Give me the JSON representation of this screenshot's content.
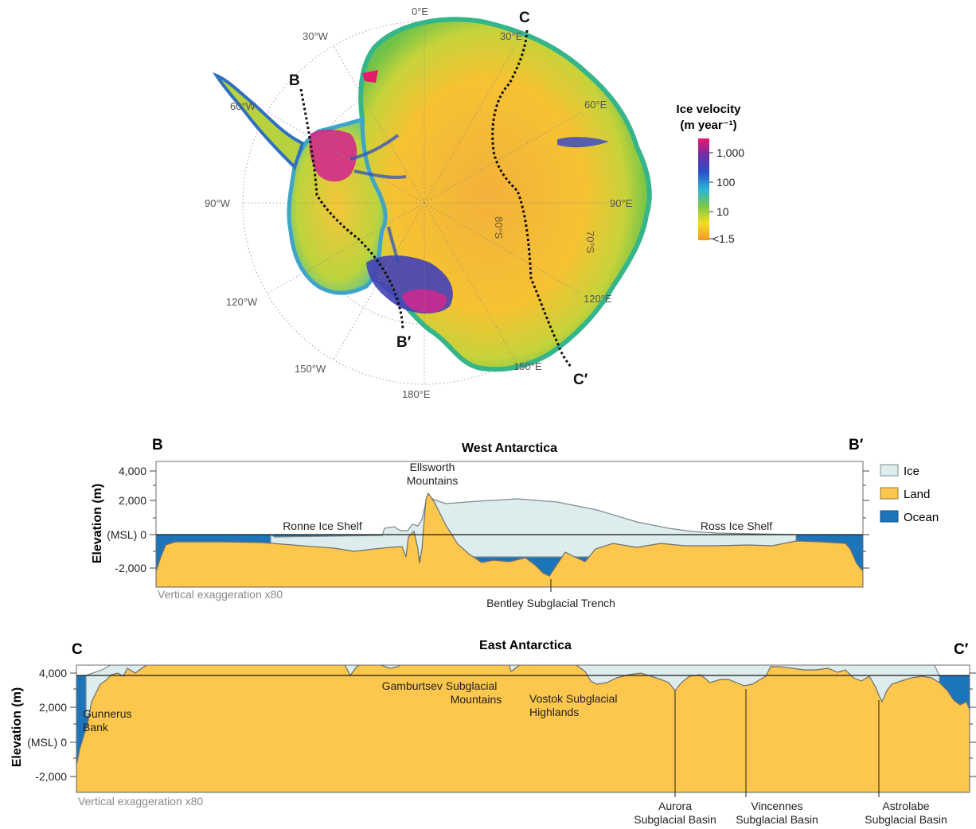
{
  "map": {
    "lon_labels": [
      "0°E",
      "30°E",
      "60°E",
      "90°E",
      "120°E",
      "150°E",
      "180°E",
      "150°W",
      "120°W",
      "90°W",
      "60°W",
      "30°W"
    ],
    "lat_labels": [
      "80°S",
      "70°S"
    ],
    "transect_b": {
      "start": "B",
      "end": "B′"
    },
    "transect_c": {
      "start": "C",
      "end": "C′"
    },
    "colorbar": {
      "title_line1": "Ice velocity",
      "title_line2": "(m year⁻¹)",
      "ticks": [
        "1,000",
        "100",
        "10",
        "<1.5"
      ],
      "colors": [
        "#e8186e",
        "#6a2fa8",
        "#2a4fc9",
        "#2bb5d8",
        "#7ec845",
        "#f2dd22",
        "#f39a1f"
      ]
    }
  },
  "legend": {
    "items": [
      {
        "label": "Ice",
        "color": "#ddecec"
      },
      {
        "label": "Land",
        "color": "#fdc64c"
      },
      {
        "label": "Ocean",
        "color": "#1d75b9"
      }
    ]
  },
  "west": {
    "title": "West Antarctica",
    "start_label": "B",
    "end_label": "B′",
    "ylabel": "Elevation (m)",
    "yticks": [
      "4,000",
      "2,000",
      "(MSL) 0",
      "-2,000"
    ],
    "exaggeration": "Vertical exaggeration x80",
    "annotations": {
      "ellsworth_1": "Ellsworth",
      "ellsworth_2": "Mountains",
      "ronne": "Ronne Ice Shelf",
      "ross": "Ross Ice Shelf",
      "bentley": "Bentley Subglacial Trench"
    }
  },
  "east": {
    "title": "East Antarctica",
    "start_label": "C",
    "end_label": "C′",
    "ylabel": "Elevation (m)",
    "yticks": [
      "4,000",
      "2,000",
      "(MSL) 0",
      "-2,000"
    ],
    "exaggeration": "Vertical exaggeration x80",
    "annotations": {
      "gunnerus_1": "Gunnerus",
      "gunnerus_2": "Bank",
      "gamburtsev_1": "Gamburtsev Subglacial",
      "gamburtsev_2": "Mountains",
      "vostok_1": "Vostok Subglacial",
      "vostok_2": "Highlands",
      "aurora_1": "Aurora",
      "aurora_2": "Subglacial Basin",
      "vincennes_1": "Vincennes",
      "vincennes_2": "Subglacial Basin",
      "astrolabe_1": "Astrolabe",
      "astrolabe_2": "Subglacial Basin"
    }
  }
}
